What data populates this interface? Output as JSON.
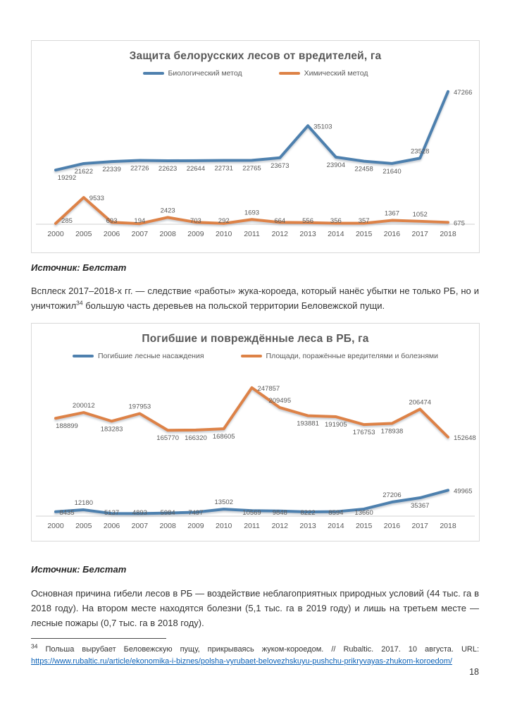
{
  "page": {
    "number": "18"
  },
  "captions": {
    "source_1": "Источник: Белстат",
    "source_2": "Источник: Белстат"
  },
  "paragraphs": {
    "borer_before": "Всплеск 2017–2018-х гг. — следствие «работы» жука-короеда, который нанёс убытки не только РБ, но и уничтожил",
    "borer_ref": "34",
    "borer_after": " большую часть деревьев на польской территории Беловежской пущи.",
    "causes": "Основная причина гибели лесов в РБ — воздействие неблагоприятных природных условий (44 тыс. га в 2018 году). На втором месте находятся болезни (5,1 тыс. га в 2019 году) и лишь на третьем месте — лесные пожары (0,7 тыс. га в 2018 году)."
  },
  "footnote": {
    "ref": "34",
    "text": "Польша вырубает Беловежскую пущу, прикрываясь жуком-короедом. // Rubaltic. 2017. 10 августа. URL:",
    "url": "https://www.rubaltic.ru/article/ekonomika-i-biznes/polsha-vyrubaet-belovezhskuyu-pushchu-prikryvayas-zhukom-koroedom/"
  },
  "chart_data": [
    {
      "type": "line",
      "title": "Защита белорусских лесов от вредителей, га",
      "categories": [
        "2000",
        "2005",
        "2006",
        "2007",
        "2008",
        "2009",
        "2010",
        "2011",
        "2012",
        "2013",
        "2014",
        "2015",
        "2016",
        "2017",
        "2018"
      ],
      "series": [
        {
          "name": "Биологический метод",
          "color": "#4e80ae",
          "values": [
            19292,
            21622,
            22339,
            22726,
            22623,
            22644,
            22731,
            22765,
            23673,
            35103,
            23904,
            22458,
            21640,
            23528,
            47266
          ],
          "label_pos": [
            "below",
            "below",
            "below",
            "below",
            "below",
            "below",
            "below",
            "below",
            "below",
            "right",
            "below",
            "below",
            "below",
            "above",
            "right"
          ]
        },
        {
          "name": "Химический метод",
          "color": "#dd8246",
          "values": [
            285,
            9533,
            693,
            194,
            2423,
            703,
            292,
            1693,
            664,
            556,
            356,
            357,
            1367,
            1052,
            675
          ],
          "label_pos": [
            "below",
            "right",
            "below",
            "below",
            "above",
            "below",
            "below",
            "above",
            "below",
            "below",
            "below",
            "below",
            "above",
            "above",
            "right"
          ]
        }
      ],
      "xlabel": "",
      "ylabel": "",
      "ylim": [
        0,
        50000
      ],
      "grid": false,
      "legend_position": "top",
      "label_color": "#595959",
      "axis_color": "#d2d2d2"
    },
    {
      "type": "line",
      "title": "Погибшие и повреждённые леса в РБ, га",
      "categories": [
        "2000",
        "2005",
        "2006",
        "2007",
        "2008",
        "2009",
        "2010",
        "2011",
        "2012",
        "2013",
        "2014",
        "2015",
        "2016",
        "2017",
        "2018"
      ],
      "series": [
        {
          "name": "Погибшие лесные насаждения",
          "color": "#4e80ae",
          "values": [
            8435,
            12180,
            5137,
            4893,
            5984,
            7497,
            13502,
            10569,
            9848,
            8222,
            8594,
            13660,
            27206,
            35367,
            49965
          ],
          "label_pos": [
            "below",
            "above",
            "below",
            "below",
            "below",
            "below",
            "above",
            "below",
            "below",
            "below",
            "below",
            "below",
            "above",
            "below",
            "right"
          ]
        },
        {
          "name": "Площади, поражённые вредителями и болезнями",
          "color": "#dd8246",
          "values": [
            188899,
            200012,
            183283,
            197953,
            165770,
            166320,
            168605,
            247857,
            209495,
            193881,
            191905,
            176753,
            178938,
            206474,
            152648
          ],
          "label_pos": [
            "below",
            "above",
            "below",
            "above",
            "below",
            "below",
            "below",
            "right",
            "above",
            "below",
            "below",
            "below",
            "below",
            "above",
            "right"
          ]
        }
      ],
      "xlabel": "",
      "ylabel": "",
      "ylim": [
        0,
        260000
      ],
      "grid": false,
      "legend_position": "top",
      "label_color": "#595959",
      "axis_color": "#d2d2d2"
    }
  ]
}
